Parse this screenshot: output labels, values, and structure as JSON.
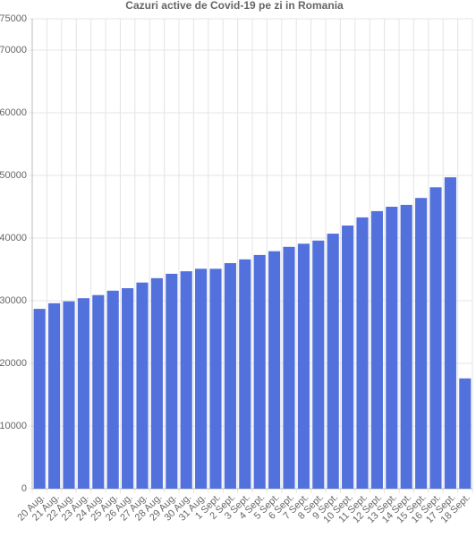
{
  "chart_data": {
    "type": "bar",
    "title": "Cazuri active de Covid-19 pe zi in Romania",
    "categories": [
      "20 Aug.",
      "21 Aug.",
      "22 Aug.",
      "23 Aug.",
      "24 Aug.",
      "25 Aug.",
      "26 Aug.",
      "27 Aug.",
      "28 Aug.",
      "29 Aug.",
      "30 Aug.",
      "31 Aug.",
      "1 Sept.",
      "2 Sept.",
      "3 Sept.",
      "4 Sept.",
      "5 Sept.",
      "6 Sept.",
      "7 Sept.",
      "8 Sept.",
      "9 Sept.",
      "10 Sept.",
      "11 Sept.",
      "12 Sept.",
      "13 Sept.",
      "14 Sept.",
      "15 Sept.",
      "16 Sept.",
      "17 Sept.",
      "18 Sept."
    ],
    "values": [
      28700,
      29600,
      29900,
      30400,
      30900,
      31600,
      32000,
      32900,
      33600,
      34300,
      34700,
      35100,
      35100,
      36000,
      36600,
      37300,
      37900,
      38600,
      39100,
      39600,
      40700,
      42000,
      43300,
      44300,
      45000,
      45300,
      46400,
      48100,
      49700,
      17600
    ],
    "color": "#5271dc",
    "ylim": [
      0,
      75000
    ],
    "yticks": [
      0,
      10000,
      20000,
      30000,
      40000,
      50000,
      60000,
      70000,
      75000
    ],
    "grid": true
  }
}
